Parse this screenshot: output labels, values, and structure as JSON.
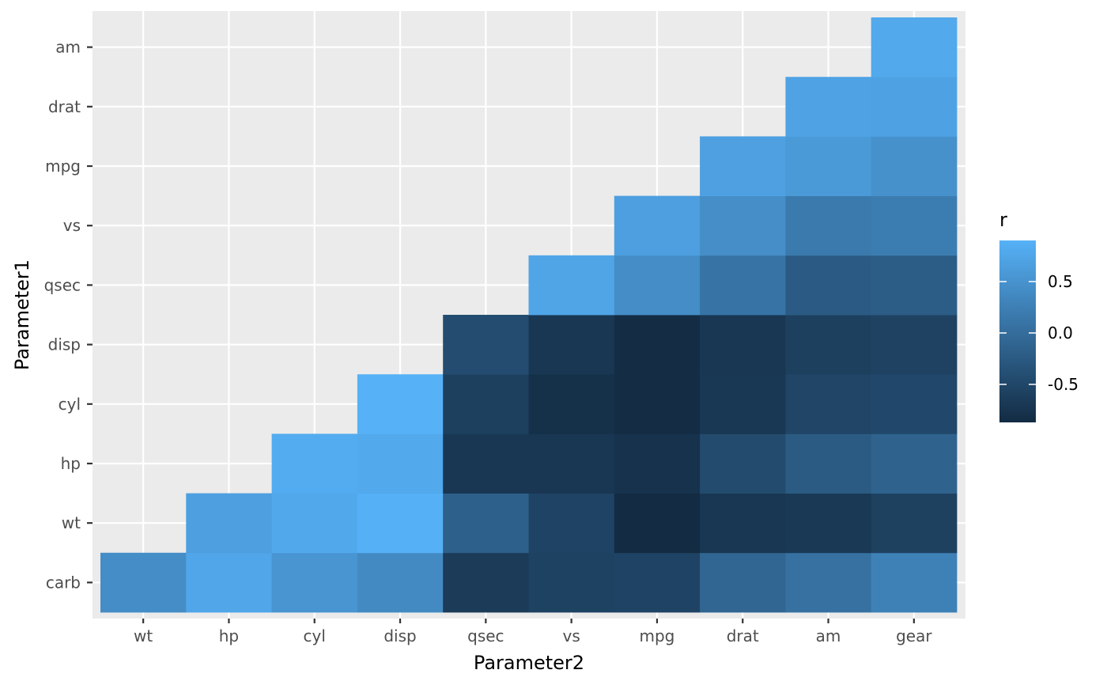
{
  "chart_data": {
    "type": "heatmap",
    "title": "",
    "xlabel": "Parameter2",
    "ylabel": "Parameter1",
    "x_categories": [
      "wt",
      "hp",
      "cyl",
      "disp",
      "qsec",
      "vs",
      "mpg",
      "drat",
      "am",
      "gear"
    ],
    "y_categories": [
      "carb",
      "wt",
      "hp",
      "cyl",
      "disp",
      "qsec",
      "vs",
      "mpg",
      "drat",
      "am"
    ],
    "grid": true,
    "legend": {
      "title": "r",
      "position": "right",
      "ticks": [
        "0.5",
        "0.0",
        "-0.5"
      ],
      "tick_values": [
        0.5,
        0.0,
        -0.5
      ],
      "range": [
        -0.87,
        0.9
      ],
      "low_color": "#132B43",
      "high_color": "#56B1F7"
    },
    "cells": [
      {
        "x": "wt",
        "y": "carb",
        "r": 0.43
      },
      {
        "x": "hp",
        "y": "carb",
        "r": 0.75
      },
      {
        "x": "cyl",
        "y": "carb",
        "r": 0.53
      },
      {
        "x": "disp",
        "y": "carb",
        "r": 0.39
      },
      {
        "x": "qsec",
        "y": "carb",
        "r": -0.66
      },
      {
        "x": "vs",
        "y": "carb",
        "r": -0.57
      },
      {
        "x": "mpg",
        "y": "carb",
        "r": -0.55
      },
      {
        "x": "drat",
        "y": "carb",
        "r": -0.09
      },
      {
        "x": "am",
        "y": "carb",
        "r": 0.06
      },
      {
        "x": "gear",
        "y": "carb",
        "r": 0.27
      },
      {
        "x": "hp",
        "y": "wt",
        "r": 0.66
      },
      {
        "x": "cyl",
        "y": "wt",
        "r": 0.78
      },
      {
        "x": "disp",
        "y": "wt",
        "r": 0.89
      },
      {
        "x": "qsec",
        "y": "wt",
        "r": -0.17
      },
      {
        "x": "vs",
        "y": "wt",
        "r": -0.55
      },
      {
        "x": "mpg",
        "y": "wt",
        "r": -0.87
      },
      {
        "x": "drat",
        "y": "wt",
        "r": -0.71
      },
      {
        "x": "am",
        "y": "wt",
        "r": -0.69
      },
      {
        "x": "gear",
        "y": "wt",
        "r": -0.58
      },
      {
        "x": "cyl",
        "y": "hp",
        "r": 0.83
      },
      {
        "x": "disp",
        "y": "hp",
        "r": 0.79
      },
      {
        "x": "qsec",
        "y": "hp",
        "r": -0.71
      },
      {
        "x": "vs",
        "y": "hp",
        "r": -0.72
      },
      {
        "x": "mpg",
        "y": "hp",
        "r": -0.78
      },
      {
        "x": "drat",
        "y": "hp",
        "r": -0.45
      },
      {
        "x": "am",
        "y": "hp",
        "r": -0.24
      },
      {
        "x": "gear",
        "y": "hp",
        "r": -0.13
      },
      {
        "x": "disp",
        "y": "cyl",
        "r": 0.9
      },
      {
        "x": "qsec",
        "y": "cyl",
        "r": -0.59
      },
      {
        "x": "vs",
        "y": "cyl",
        "r": -0.81
      },
      {
        "x": "mpg",
        "y": "cyl",
        "r": -0.85
      },
      {
        "x": "drat",
        "y": "cyl",
        "r": -0.7
      },
      {
        "x": "am",
        "y": "cyl",
        "r": -0.52
      },
      {
        "x": "gear",
        "y": "cyl",
        "r": -0.49
      },
      {
        "x": "qsec",
        "y": "disp",
        "r": -0.43
      },
      {
        "x": "vs",
        "y": "disp",
        "r": -0.71
      },
      {
        "x": "mpg",
        "y": "disp",
        "r": -0.85
      },
      {
        "x": "drat",
        "y": "disp",
        "r": -0.71
      },
      {
        "x": "am",
        "y": "disp",
        "r": -0.59
      },
      {
        "x": "gear",
        "y": "disp",
        "r": -0.56
      },
      {
        "x": "vs",
        "y": "qsec",
        "r": 0.74
      },
      {
        "x": "mpg",
        "y": "qsec",
        "r": 0.42
      },
      {
        "x": "drat",
        "y": "qsec",
        "r": 0.09
      },
      {
        "x": "am",
        "y": "qsec",
        "r": -0.23
      },
      {
        "x": "gear",
        "y": "qsec",
        "r": -0.21
      },
      {
        "x": "mpg",
        "y": "vs",
        "r": 0.66
      },
      {
        "x": "drat",
        "y": "vs",
        "r": 0.44
      },
      {
        "x": "am",
        "y": "vs",
        "r": 0.17
      },
      {
        "x": "gear",
        "y": "vs",
        "r": 0.21
      },
      {
        "x": "drat",
        "y": "mpg",
        "r": 0.68
      },
      {
        "x": "am",
        "y": "mpg",
        "r": 0.6
      },
      {
        "x": "gear",
        "y": "mpg",
        "r": 0.48
      },
      {
        "x": "am",
        "y": "drat",
        "r": 0.71
      },
      {
        "x": "gear",
        "y": "drat",
        "r": 0.7
      },
      {
        "x": "gear",
        "y": "am",
        "r": 0.79
      }
    ]
  }
}
